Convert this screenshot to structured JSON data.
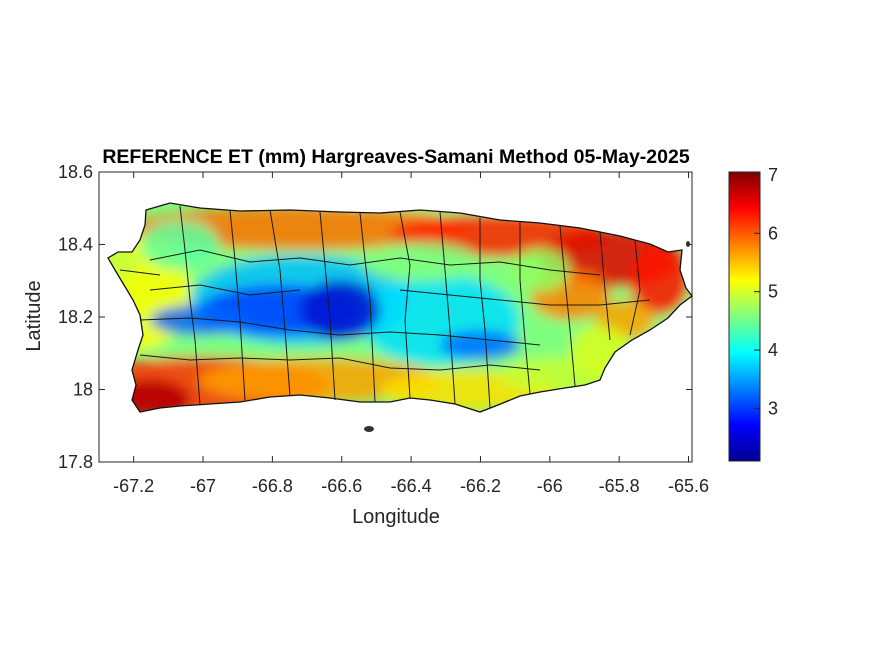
{
  "chart_data": {
    "type": "heatmap",
    "title": "REFERENCE ET (mm) Hargreaves-Samani Method  05-May-2025",
    "xlabel": "Longitude",
    "ylabel": "Latitude",
    "xlim": [
      -67.3,
      -65.59
    ],
    "ylim": [
      17.8,
      18.6
    ],
    "x_ticks": [
      -67.2,
      -67,
      -66.8,
      -66.6,
      -66.4,
      -66.2,
      -66,
      -65.8,
      -65.6
    ],
    "x_tick_labels": [
      "-67.2",
      "-67",
      "-66.8",
      "-66.6",
      "-66.4",
      "-66.2",
      "-66",
      "-65.8",
      "-65.6"
    ],
    "y_ticks": [
      17.8,
      18,
      18.2,
      18.4,
      18.6
    ],
    "y_tick_labels": [
      "17.8",
      "18",
      "18.2",
      "18.4",
      "18.6"
    ],
    "colorbar": {
      "colormap": "jet",
      "range": [
        2.1,
        7.05
      ],
      "ticks": [
        3,
        4,
        5,
        6,
        7
      ],
      "tick_labels": [
        "3",
        "4",
        "5",
        "6",
        "7"
      ]
    },
    "grid": false,
    "legend": "colorbar-right",
    "field_description_values": {
      "west_coast_approx": 5.2,
      "south_coast_approx": 6.6,
      "central_mountains_approx": 2.6,
      "north_coast_approx": 6.2,
      "northeast_approx": 6.9,
      "southeast_approx": 5.0
    }
  }
}
